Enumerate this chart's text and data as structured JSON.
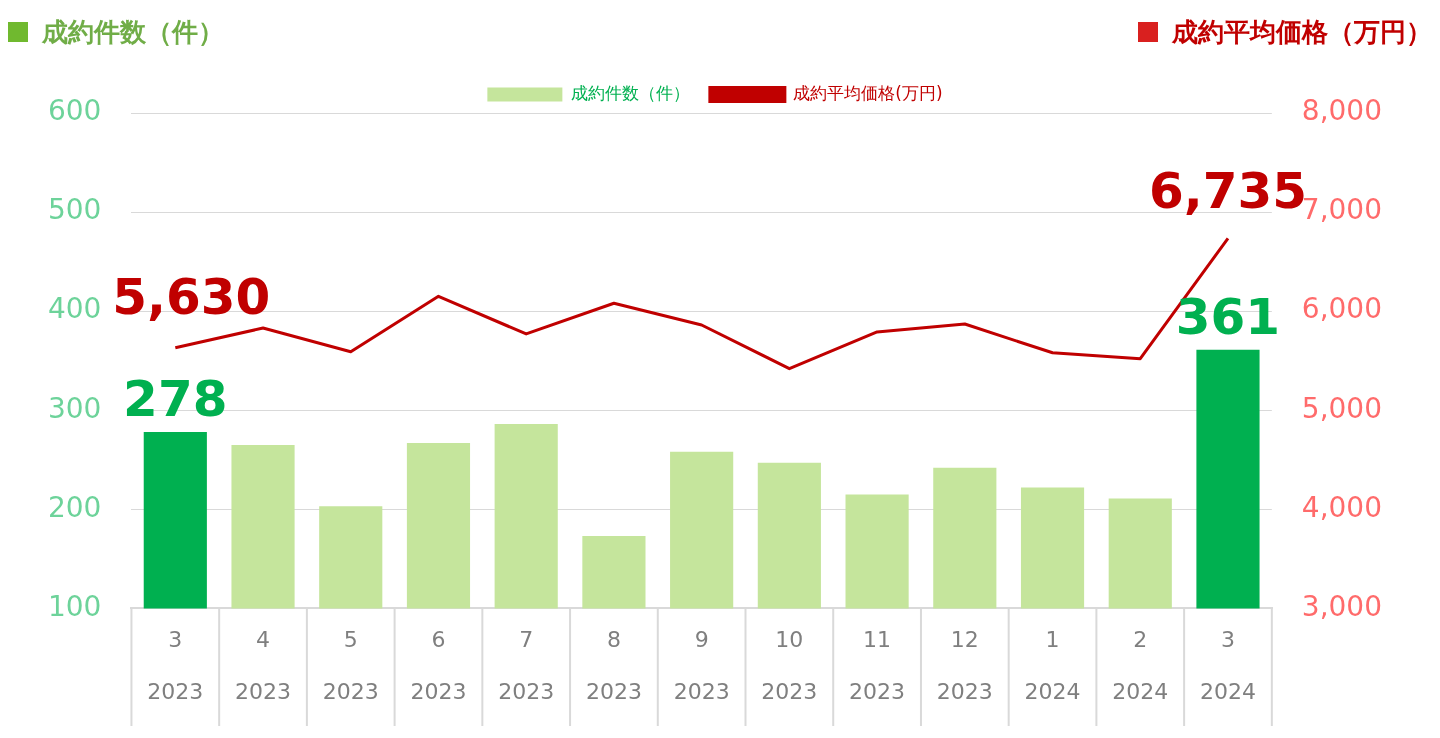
{
  "chart_data": {
    "type": "bar",
    "ylabel": "成約件数（件）",
    "y2label": "成約平均価格（万円）",
    "categories": [
      "3\n2023",
      "4\n2023",
      "5\n2023",
      "6\n2023",
      "7\n2023",
      "8\n2023",
      "9\n2023",
      "10\n2023",
      "11\n2023",
      "12\n2023",
      "1\n2024",
      "2\n2024",
      "3\n2024"
    ],
    "series": [
      {
        "name": "成約件数（件）",
        "color": "#c5e59c",
        "colors": [
          "#00b050",
          "#c5e59c",
          "#c5e59c",
          "#c5e59c",
          "#c5e59c",
          "#c5e59c",
          "#c5e59c",
          "#c5e59c",
          "#c5e59c",
          "#c5e59c",
          "#c5e59c",
          "#c5e59c",
          "#00b050"
        ],
        "values": [
          278,
          265,
          203,
          267,
          286,
          173,
          258,
          247,
          215,
          242,
          222,
          211,
          361
        ],
        "value_labels": [
          "278",
          null,
          null,
          null,
          null,
          null,
          null,
          null,
          null,
          null,
          null,
          null,
          "361"
        ]
      },
      {
        "name": "成約平均価格(万円)",
        "type": "line",
        "axis": "y2",
        "color": "#c00000",
        "marker": "none",
        "values": [
          5630,
          5830,
          5590,
          6150,
          5770,
          6080,
          5860,
          5420,
          5790,
          5870,
          5580,
          5520,
          6735
        ],
        "value_labels": [
          "5,630",
          null,
          null,
          null,
          null,
          null,
          null,
          null,
          null,
          null,
          null,
          null,
          "6,735"
        ]
      }
    ],
    "ylim": [
      100,
      600
    ],
    "yticks": [
      100,
      200,
      300,
      400,
      500,
      600
    ],
    "y2lim": [
      3000,
      8000
    ],
    "y2ticks": [
      {
        "value": 3000,
        "label": "3,000"
      },
      {
        "value": 4000,
        "label": "4,000"
      },
      {
        "value": 5000,
        "label": "5,000"
      },
      {
        "value": 6000,
        "label": "6,000"
      },
      {
        "value": 7000,
        "label": "7,000"
      },
      {
        "value": 8000,
        "label": "8,000"
      }
    ],
    "grid": "y",
    "legend": "top"
  }
}
